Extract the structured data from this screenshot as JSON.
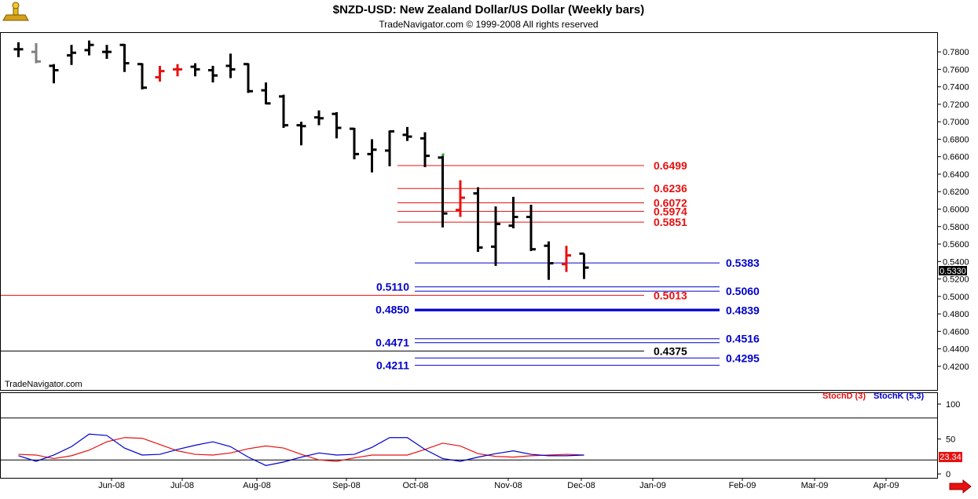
{
  "title": "$NZD-USD:  New Zealand Dollar/US Dollar  (Weekly bars)",
  "subtitle": "TradeNavigator.com © 1999-2008 All rights reserved",
  "watermark": "TradeNavigator.com",
  "last_price_label": "0.5330",
  "stoch_value_label": "23.34",
  "colors": {
    "up": "#000000",
    "down": "#000000",
    "red": "#e81010",
    "blue": "#0000cc",
    "gray": "#808080",
    "green": "#20b020"
  },
  "chart_data": [
    {
      "type": "bar",
      "subtype": "ohlc",
      "ylim": [
        0.41,
        0.79
      ],
      "y_ticks": [
        "0.7800",
        "0.7600",
        "0.7400",
        "0.7200",
        "0.7000",
        "0.6800",
        "0.6600",
        "0.6400",
        "0.6200",
        "0.6000",
        "0.5800",
        "0.5600",
        "0.5400",
        "0.5200",
        "0.5000",
        "0.4800",
        "0.4600",
        "0.4400",
        "0.4200"
      ],
      "x_ticks": [
        "Jun-08",
        "Jul-08",
        "Aug-08",
        "Sep-08",
        "Oct-08",
        "Nov-08",
        "Dec-08",
        "Jan-09",
        "Feb-09",
        "Mar-09",
        "Apr-09"
      ],
      "bars": [
        {
          "o": 0.783,
          "h": 0.791,
          "l": 0.774,
          "c": 0.783,
          "color": "black"
        },
        {
          "o": 0.78,
          "h": 0.79,
          "l": 0.767,
          "c": 0.769,
          "color": "gray"
        },
        {
          "o": 0.764,
          "h": 0.766,
          "l": 0.744,
          "c": 0.759,
          "color": "black"
        },
        {
          "o": 0.776,
          "h": 0.788,
          "l": 0.765,
          "c": 0.779,
          "color": "black"
        },
        {
          "o": 0.782,
          "h": 0.793,
          "l": 0.776,
          "c": 0.788,
          "color": "black"
        },
        {
          "o": 0.78,
          "h": 0.788,
          "l": 0.772,
          "c": 0.78,
          "color": "black"
        },
        {
          "o": 0.788,
          "h": 0.789,
          "l": 0.757,
          "c": 0.767,
          "color": "black"
        },
        {
          "o": 0.766,
          "h": 0.767,
          "l": 0.737,
          "c": 0.739,
          "color": "black"
        },
        {
          "o": 0.751,
          "h": 0.764,
          "l": 0.746,
          "c": 0.758,
          "color": "red"
        },
        {
          "o": 0.76,
          "h": 0.766,
          "l": 0.752,
          "c": 0.76,
          "color": "red"
        },
        {
          "o": 0.763,
          "h": 0.767,
          "l": 0.752,
          "c": 0.76,
          "color": "black"
        },
        {
          "o": 0.759,
          "h": 0.764,
          "l": 0.745,
          "c": 0.753,
          "color": "black"
        },
        {
          "o": 0.764,
          "h": 0.778,
          "l": 0.75,
          "c": 0.76,
          "color": "black"
        },
        {
          "o": 0.766,
          "h": 0.767,
          "l": 0.733,
          "c": 0.735,
          "color": "black"
        },
        {
          "o": 0.736,
          "h": 0.745,
          "l": 0.72,
          "c": 0.721,
          "color": "black"
        },
        {
          "o": 0.729,
          "h": 0.731,
          "l": 0.693,
          "c": 0.696,
          "color": "black"
        },
        {
          "o": 0.696,
          "h": 0.7,
          "l": 0.673,
          "c": 0.695,
          "color": "black"
        },
        {
          "o": 0.705,
          "h": 0.713,
          "l": 0.696,
          "c": 0.704,
          "color": "black"
        },
        {
          "o": 0.709,
          "h": 0.711,
          "l": 0.681,
          "c": 0.693,
          "color": "black"
        },
        {
          "o": 0.692,
          "h": 0.693,
          "l": 0.657,
          "c": 0.663,
          "color": "black"
        },
        {
          "o": 0.663,
          "h": 0.68,
          "l": 0.642,
          "c": 0.668,
          "color": "black"
        },
        {
          "o": 0.667,
          "h": 0.69,
          "l": 0.649,
          "c": 0.689,
          "color": "black"
        },
        {
          "o": 0.685,
          "h": 0.694,
          "l": 0.678,
          "c": 0.683,
          "color": "black"
        },
        {
          "o": 0.681,
          "h": 0.688,
          "l": 0.648,
          "c": 0.661,
          "color": "black"
        },
        {
          "o": 0.659,
          "h": 0.661,
          "l": 0.579,
          "c": 0.595,
          "color": "black"
        },
        {
          "o": 0.599,
          "h": 0.633,
          "l": 0.591,
          "c": 0.613,
          "color": "red"
        },
        {
          "o": 0.618,
          "h": 0.625,
          "l": 0.551,
          "c": 0.556,
          "color": "black"
        },
        {
          "o": 0.557,
          "h": 0.603,
          "l": 0.535,
          "c": 0.583,
          "color": "black"
        },
        {
          "o": 0.581,
          "h": 0.614,
          "l": 0.578,
          "c": 0.591,
          "color": "black"
        },
        {
          "o": 0.591,
          "h": 0.605,
          "l": 0.552,
          "c": 0.554,
          "color": "black"
        },
        {
          "o": 0.558,
          "h": 0.563,
          "l": 0.519,
          "c": 0.538,
          "color": "black"
        },
        {
          "o": 0.537,
          "h": 0.558,
          "l": 0.528,
          "c": 0.547,
          "color": "red"
        },
        {
          "o": 0.549,
          "h": 0.549,
          "l": 0.52,
          "c": 0.533,
          "color": "black"
        }
      ],
      "levels": [
        {
          "label": "0.6499",
          "value": 0.6499,
          "color": "red",
          "side": "right"
        },
        {
          "label": "0.6236",
          "value": 0.6236,
          "color": "red",
          "side": "right"
        },
        {
          "label": "0.6072",
          "value": 0.6072,
          "color": "red",
          "side": "right"
        },
        {
          "label": "0.5974",
          "value": 0.5974,
          "color": "red",
          "side": "right"
        },
        {
          "label": "0.5851",
          "value": 0.5851,
          "color": "red",
          "side": "right"
        },
        {
          "label": "0.5383",
          "value": 0.5383,
          "color": "blue",
          "side": "far-right"
        },
        {
          "label": "0.5110",
          "value": 0.511,
          "color": "blue",
          "side": "left"
        },
        {
          "label": "0.5060",
          "value": 0.506,
          "color": "blue",
          "side": "far-right"
        },
        {
          "label": "0.5013",
          "value": 0.5013,
          "color": "red",
          "side": "right-full"
        },
        {
          "label": "0.4850",
          "value": 0.485,
          "color": "blue",
          "side": "left"
        },
        {
          "label": "0.4839",
          "value": 0.4839,
          "color": "blue",
          "side": "far-right"
        },
        {
          "label": "0.4471",
          "value": 0.4471,
          "color": "blue",
          "side": "left"
        },
        {
          "label": "0.4516",
          "value": 0.4516,
          "color": "blue",
          "side": "far-right"
        },
        {
          "label": "0.4375",
          "value": 0.4375,
          "color": "black",
          "side": "right-full"
        },
        {
          "label": "0.4295",
          "value": 0.4295,
          "color": "blue",
          "side": "far-right"
        },
        {
          "label": "0.4211",
          "value": 0.4211,
          "color": "blue",
          "side": "left"
        }
      ]
    },
    {
      "type": "line",
      "ylim": [
        0,
        100
      ],
      "y_ticks": [
        "100",
        "50",
        "0"
      ],
      "legend": [
        "StochD (3)",
        "StochK (5,3)"
      ],
      "series": [
        {
          "name": "StochD (3)",
          "color": "red",
          "values": [
            28,
            27,
            22,
            26,
            34,
            46,
            52,
            51,
            42,
            33,
            28,
            27,
            30,
            36,
            40,
            37,
            28,
            20,
            18,
            23,
            27,
            27,
            27,
            35,
            44,
            40,
            29,
            25,
            24,
            26,
            27,
            28,
            27
          ]
        },
        {
          "name": "StochK (5,3)",
          "color": "blue",
          "values": [
            26,
            18,
            27,
            39,
            57,
            55,
            37,
            27,
            28,
            35,
            41,
            46,
            39,
            24,
            12,
            17,
            24,
            30,
            27,
            28,
            38,
            52,
            52,
            35,
            22,
            18,
            24,
            29,
            33,
            28,
            26,
            26,
            27
          ]
        }
      ]
    }
  ]
}
